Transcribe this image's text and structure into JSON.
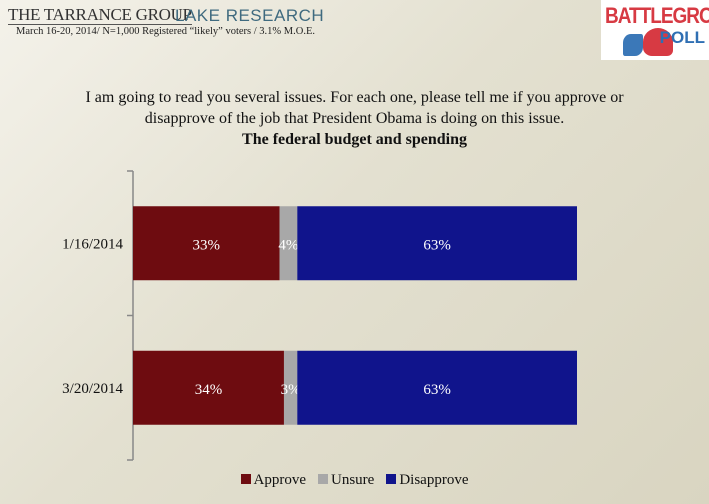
{
  "header": {
    "brand_left": "THE TARRANCE GROUP",
    "brand_right": "LAKE RESEARCH",
    "subtitle": "March 16-20, 2014/ N=1,000 Registered “likely” voters /   3.1% M.O.E.",
    "logo_text": "BATTLEGROUND POLL"
  },
  "question_line1": "I am going to read you several issues.  For each one, please tell me if you approve or",
  "question_line2": "disapprove of the job that President Obama is doing on this issue.",
  "chart_data": {
    "type": "bar",
    "orientation": "horizontal",
    "stacked": true,
    "title": "The federal budget and spending",
    "categories": [
      "1/16/2014",
      "3/20/2014"
    ],
    "series": [
      {
        "name": "Approve",
        "values": [
          33,
          34
        ],
        "labels": [
          "33%",
          "34%"
        ],
        "color": "#6e0c10"
      },
      {
        "name": "Unsure",
        "values": [
          4,
          3
        ],
        "labels": [
          "4%",
          "3%"
        ],
        "color": "#a8a8a8"
      },
      {
        "name": "Disapprove",
        "values": [
          63,
          63
        ],
        "labels": [
          "63%",
          "63%"
        ],
        "color": "#10148c"
      }
    ],
    "xlim": [
      0,
      100
    ],
    "grid": false,
    "legend": "bottom"
  }
}
